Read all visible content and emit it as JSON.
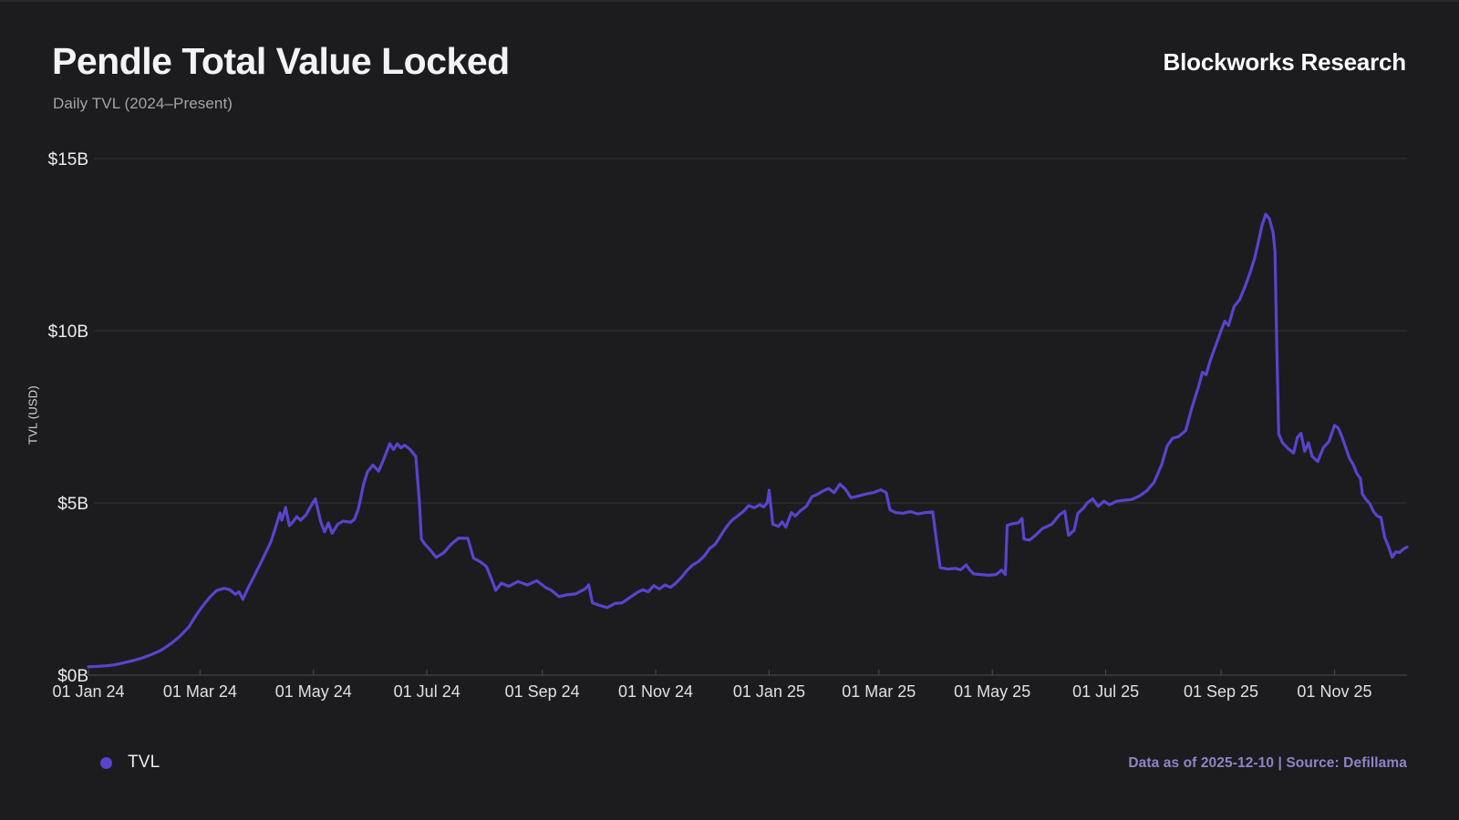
{
  "header": {
    "title": "Pendle Total Value Locked",
    "subtitle": "Daily TVL (2024–Present)",
    "brand": "Blockworks Research"
  },
  "legend": {
    "label": "TVL"
  },
  "footer": {
    "text": "Data as of 2025-12-10 | Source: Defillama"
  },
  "colors": {
    "background": "#1c1b1e",
    "line": "#5a43cd",
    "grid": "#343338",
    "axis": "#4c4b51",
    "y_tick_text": "#eceaed",
    "x_tick_text": "#e0dfe2",
    "footer_text": "#8d85c6"
  },
  "chart_data": {
    "type": "line",
    "title": "Pendle Total Value Locked",
    "subtitle": "Daily TVL (2024–Present)",
    "xlabel": "",
    "ylabel": "TVL (USD)",
    "unit": "USD billions",
    "ylim": [
      0,
      15
    ],
    "grid": "horizontal",
    "legend_position": "bottom-left",
    "y_ticks": [
      {
        "value": 0,
        "label": "$0B"
      },
      {
        "value": 5,
        "label": "$5B"
      },
      {
        "value": 10,
        "label": "$10B"
      },
      {
        "value": 15,
        "label": "$15B"
      }
    ],
    "x_ticks": [
      {
        "date": "2024-01-01",
        "label": "01 Jan 24"
      },
      {
        "date": "2024-03-01",
        "label": "01 Mar 24"
      },
      {
        "date": "2024-05-01",
        "label": "01 May 24"
      },
      {
        "date": "2024-07-01",
        "label": "01 Jul 24"
      },
      {
        "date": "2024-09-01",
        "label": "01 Sep 24"
      },
      {
        "date": "2024-11-01",
        "label": "01 Nov 24"
      },
      {
        "date": "2025-01-01",
        "label": "01 Jan 25"
      },
      {
        "date": "2025-03-01",
        "label": "01 Mar 25"
      },
      {
        "date": "2025-05-01",
        "label": "01 May 25"
      },
      {
        "date": "2025-07-01",
        "label": "01 Jul 25"
      },
      {
        "date": "2025-09-01",
        "label": "01 Sep 25"
      },
      {
        "date": "2025-11-01",
        "label": "01 Nov 25"
      }
    ],
    "series": [
      {
        "name": "TVL",
        "color": "#5a43cd",
        "points": [
          [
            "2024-01-01",
            0.24
          ],
          [
            "2024-01-05",
            0.25
          ],
          [
            "2024-01-10",
            0.27
          ],
          [
            "2024-01-15",
            0.3
          ],
          [
            "2024-01-20",
            0.36
          ],
          [
            "2024-01-25",
            0.42
          ],
          [
            "2024-01-30",
            0.5
          ],
          [
            "2024-02-04",
            0.6
          ],
          [
            "2024-02-09",
            0.72
          ],
          [
            "2024-02-14",
            0.9
          ],
          [
            "2024-02-19",
            1.12
          ],
          [
            "2024-02-24",
            1.4
          ],
          [
            "2024-02-28",
            1.75
          ],
          [
            "2024-03-02",
            1.98
          ],
          [
            "2024-03-06",
            2.25
          ],
          [
            "2024-03-10",
            2.46
          ],
          [
            "2024-03-14",
            2.52
          ],
          [
            "2024-03-17",
            2.48
          ],
          [
            "2024-03-20",
            2.35
          ],
          [
            "2024-03-22",
            2.42
          ],
          [
            "2024-03-24",
            2.2
          ],
          [
            "2024-03-27",
            2.55
          ],
          [
            "2024-03-30",
            2.86
          ],
          [
            "2024-04-03",
            3.3
          ],
          [
            "2024-04-08",
            3.86
          ],
          [
            "2024-04-10",
            4.18
          ],
          [
            "2024-04-13",
            4.71
          ],
          [
            "2024-04-14",
            4.5
          ],
          [
            "2024-04-16",
            4.87
          ],
          [
            "2024-04-18",
            4.34
          ],
          [
            "2024-04-20",
            4.45
          ],
          [
            "2024-04-22",
            4.6
          ],
          [
            "2024-04-24",
            4.5
          ],
          [
            "2024-04-27",
            4.65
          ],
          [
            "2024-04-29",
            4.85
          ],
          [
            "2024-05-02",
            5.12
          ],
          [
            "2024-05-05",
            4.44
          ],
          [
            "2024-05-07",
            4.16
          ],
          [
            "2024-05-09",
            4.42
          ],
          [
            "2024-05-11",
            4.12
          ],
          [
            "2024-05-14",
            4.38
          ],
          [
            "2024-05-17",
            4.47
          ],
          [
            "2024-05-21",
            4.44
          ],
          [
            "2024-05-23",
            4.52
          ],
          [
            "2024-05-25",
            4.8
          ],
          [
            "2024-05-28",
            5.55
          ],
          [
            "2024-05-30",
            5.9
          ],
          [
            "2024-06-02",
            6.1
          ],
          [
            "2024-06-05",
            5.92
          ],
          [
            "2024-06-08",
            6.3
          ],
          [
            "2024-06-11",
            6.72
          ],
          [
            "2024-06-13",
            6.55
          ],
          [
            "2024-06-15",
            6.72
          ],
          [
            "2024-06-17",
            6.6
          ],
          [
            "2024-06-19",
            6.68
          ],
          [
            "2024-06-22",
            6.55
          ],
          [
            "2024-06-25",
            6.35
          ],
          [
            "2024-06-27",
            5.0
          ],
          [
            "2024-06-28",
            3.95
          ],
          [
            "2024-06-30",
            3.8
          ],
          [
            "2024-07-03",
            3.62
          ],
          [
            "2024-07-06",
            3.42
          ],
          [
            "2024-07-10",
            3.55
          ],
          [
            "2024-07-14",
            3.8
          ],
          [
            "2024-07-18",
            3.98
          ],
          [
            "2024-07-23",
            3.97
          ],
          [
            "2024-07-26",
            3.4
          ],
          [
            "2024-07-30",
            3.28
          ],
          [
            "2024-08-02",
            3.15
          ],
          [
            "2024-08-05",
            2.75
          ],
          [
            "2024-08-07",
            2.46
          ],
          [
            "2024-08-10",
            2.67
          ],
          [
            "2024-08-14",
            2.58
          ],
          [
            "2024-08-19",
            2.72
          ],
          [
            "2024-08-24",
            2.62
          ],
          [
            "2024-08-29",
            2.74
          ],
          [
            "2024-09-03",
            2.54
          ],
          [
            "2024-09-06",
            2.46
          ],
          [
            "2024-09-10",
            2.28
          ],
          [
            "2024-09-14",
            2.33
          ],
          [
            "2024-09-19",
            2.36
          ],
          [
            "2024-09-24",
            2.5
          ],
          [
            "2024-09-26",
            2.62
          ],
          [
            "2024-09-28",
            2.1
          ],
          [
            "2024-10-02",
            2.02
          ],
          [
            "2024-10-06",
            1.96
          ],
          [
            "2024-10-10",
            2.08
          ],
          [
            "2024-10-14",
            2.1
          ],
          [
            "2024-10-18",
            2.25
          ],
          [
            "2024-10-22",
            2.4
          ],
          [
            "2024-10-25",
            2.48
          ],
          [
            "2024-10-28",
            2.42
          ],
          [
            "2024-10-31",
            2.6
          ],
          [
            "2024-11-03",
            2.5
          ],
          [
            "2024-11-06",
            2.62
          ],
          [
            "2024-11-09",
            2.55
          ],
          [
            "2024-11-12",
            2.68
          ],
          [
            "2024-11-15",
            2.85
          ],
          [
            "2024-11-18",
            3.05
          ],
          [
            "2024-11-21",
            3.2
          ],
          [
            "2024-11-24",
            3.3
          ],
          [
            "2024-11-27",
            3.45
          ],
          [
            "2024-11-30",
            3.68
          ],
          [
            "2024-12-03",
            3.8
          ],
          [
            "2024-12-06",
            4.05
          ],
          [
            "2024-12-09",
            4.3
          ],
          [
            "2024-12-12",
            4.5
          ],
          [
            "2024-12-15",
            4.62
          ],
          [
            "2024-12-18",
            4.75
          ],
          [
            "2024-12-21",
            4.92
          ],
          [
            "2024-12-24",
            4.86
          ],
          [
            "2024-12-27",
            4.95
          ],
          [
            "2024-12-29",
            4.88
          ],
          [
            "2024-12-31",
            5.0
          ],
          [
            "2025-01-01",
            5.37
          ],
          [
            "2025-01-03",
            4.38
          ],
          [
            "2025-01-06",
            4.32
          ],
          [
            "2025-01-08",
            4.45
          ],
          [
            "2025-01-10",
            4.3
          ],
          [
            "2025-01-13",
            4.72
          ],
          [
            "2025-01-15",
            4.62
          ],
          [
            "2025-01-18",
            4.78
          ],
          [
            "2025-01-21",
            4.9
          ],
          [
            "2025-01-24",
            5.18
          ],
          [
            "2025-01-27",
            5.25
          ],
          [
            "2025-01-30",
            5.35
          ],
          [
            "2025-02-02",
            5.42
          ],
          [
            "2025-02-05",
            5.3
          ],
          [
            "2025-02-08",
            5.55
          ],
          [
            "2025-02-11",
            5.4
          ],
          [
            "2025-02-14",
            5.15
          ],
          [
            "2025-02-18",
            5.2
          ],
          [
            "2025-02-22",
            5.26
          ],
          [
            "2025-02-26",
            5.3
          ],
          [
            "2025-03-02",
            5.38
          ],
          [
            "2025-03-05",
            5.3
          ],
          [
            "2025-03-07",
            4.8
          ],
          [
            "2025-03-10",
            4.72
          ],
          [
            "2025-03-14",
            4.7
          ],
          [
            "2025-03-18",
            4.75
          ],
          [
            "2025-03-22",
            4.68
          ],
          [
            "2025-03-26",
            4.72
          ],
          [
            "2025-03-30",
            4.74
          ],
          [
            "2025-04-01",
            3.9
          ],
          [
            "2025-04-03",
            3.12
          ],
          [
            "2025-04-07",
            3.08
          ],
          [
            "2025-04-11",
            3.1
          ],
          [
            "2025-04-14",
            3.06
          ],
          [
            "2025-04-17",
            3.2
          ],
          [
            "2025-04-19",
            3.05
          ],
          [
            "2025-04-21",
            2.94
          ],
          [
            "2025-04-25",
            2.92
          ],
          [
            "2025-04-29",
            2.9
          ],
          [
            "2025-05-03",
            2.92
          ],
          [
            "2025-05-06",
            3.05
          ],
          [
            "2025-05-08",
            2.92
          ],
          [
            "2025-05-09",
            4.35
          ],
          [
            "2025-05-12",
            4.4
          ],
          [
            "2025-05-15",
            4.42
          ],
          [
            "2025-05-17",
            4.55
          ],
          [
            "2025-05-18",
            3.95
          ],
          [
            "2025-05-21",
            3.92
          ],
          [
            "2025-05-24",
            4.05
          ],
          [
            "2025-05-28",
            4.26
          ],
          [
            "2025-06-02",
            4.38
          ],
          [
            "2025-06-06",
            4.65
          ],
          [
            "2025-06-09",
            4.76
          ],
          [
            "2025-06-11",
            4.06
          ],
          [
            "2025-06-14",
            4.2
          ],
          [
            "2025-06-16",
            4.7
          ],
          [
            "2025-06-19",
            4.85
          ],
          [
            "2025-06-21",
            5.0
          ],
          [
            "2025-06-24",
            5.12
          ],
          [
            "2025-06-27",
            4.9
          ],
          [
            "2025-06-30",
            5.05
          ],
          [
            "2025-07-03",
            4.95
          ],
          [
            "2025-07-07",
            5.05
          ],
          [
            "2025-07-11",
            5.08
          ],
          [
            "2025-07-15",
            5.1
          ],
          [
            "2025-07-19",
            5.2
          ],
          [
            "2025-07-23",
            5.35
          ],
          [
            "2025-07-27",
            5.6
          ],
          [
            "2025-07-31",
            6.1
          ],
          [
            "2025-08-03",
            6.65
          ],
          [
            "2025-08-06",
            6.88
          ],
          [
            "2025-08-09",
            6.92
          ],
          [
            "2025-08-13",
            7.1
          ],
          [
            "2025-08-16",
            7.7
          ],
          [
            "2025-08-20",
            8.4
          ],
          [
            "2025-08-22",
            8.8
          ],
          [
            "2025-08-24",
            8.72
          ],
          [
            "2025-08-26",
            9.1
          ],
          [
            "2025-08-29",
            9.55
          ],
          [
            "2025-09-01",
            10.0
          ],
          [
            "2025-09-03",
            10.28
          ],
          [
            "2025-09-05",
            10.15
          ],
          [
            "2025-09-08",
            10.7
          ],
          [
            "2025-09-11",
            10.9
          ],
          [
            "2025-09-14",
            11.3
          ],
          [
            "2025-09-17",
            11.75
          ],
          [
            "2025-09-19",
            12.1
          ],
          [
            "2025-09-21",
            12.55
          ],
          [
            "2025-09-23",
            13.05
          ],
          [
            "2025-09-25",
            13.38
          ],
          [
            "2025-09-27",
            13.25
          ],
          [
            "2025-09-29",
            12.85
          ],
          [
            "2025-09-30",
            12.3
          ],
          [
            "2025-10-01",
            9.5
          ],
          [
            "2025-10-02",
            7.0
          ],
          [
            "2025-10-04",
            6.75
          ],
          [
            "2025-10-07",
            6.58
          ],
          [
            "2025-10-10",
            6.45
          ],
          [
            "2025-10-12",
            6.9
          ],
          [
            "2025-10-14",
            7.02
          ],
          [
            "2025-10-16",
            6.5
          ],
          [
            "2025-10-18",
            6.75
          ],
          [
            "2025-10-20",
            6.35
          ],
          [
            "2025-10-23",
            6.2
          ],
          [
            "2025-10-26",
            6.6
          ],
          [
            "2025-10-29",
            6.78
          ],
          [
            "2025-11-01",
            7.25
          ],
          [
            "2025-11-03",
            7.18
          ],
          [
            "2025-11-05",
            6.92
          ],
          [
            "2025-11-07",
            6.62
          ],
          [
            "2025-11-09",
            6.3
          ],
          [
            "2025-11-11",
            6.12
          ],
          [
            "2025-11-13",
            5.86
          ],
          [
            "2025-11-15",
            5.7
          ],
          [
            "2025-11-16",
            5.25
          ],
          [
            "2025-11-18",
            5.1
          ],
          [
            "2025-11-20",
            4.98
          ],
          [
            "2025-11-22",
            4.75
          ],
          [
            "2025-11-24",
            4.62
          ],
          [
            "2025-11-26",
            4.58
          ],
          [
            "2025-11-28",
            4.0
          ],
          [
            "2025-11-30",
            3.74
          ],
          [
            "2025-12-02",
            3.42
          ],
          [
            "2025-12-04",
            3.58
          ],
          [
            "2025-12-06",
            3.56
          ],
          [
            "2025-12-08",
            3.66
          ],
          [
            "2025-12-10",
            3.72
          ]
        ]
      }
    ]
  }
}
